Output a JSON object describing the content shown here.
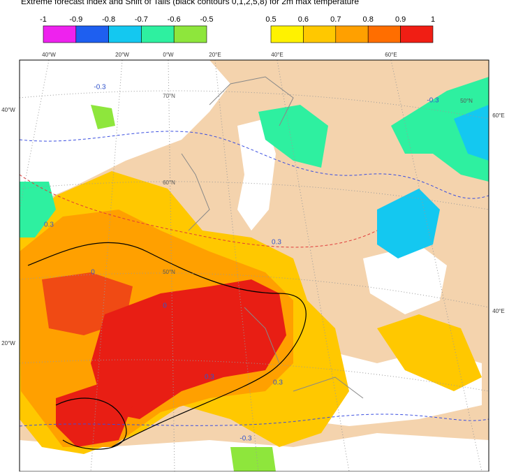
{
  "title": "Extreme forecast index and Shift of Tails (black contours 0,1,2,5,8) for 2m max temperature",
  "legend": {
    "negative": {
      "ticks": [
        -1,
        -0.9,
        -0.8,
        -0.7,
        -0.6,
        -0.5
      ],
      "colors": [
        "#ee22ee",
        "#1e5ff0",
        "#14c8f0",
        "#2ef0a0",
        "#8ee63c"
      ]
    },
    "positive": {
      "ticks": [
        0.5,
        0.6,
        0.7,
        0.8,
        0.9,
        1
      ],
      "colors": [
        "#fff200",
        "#ffc800",
        "#ffa000",
        "#ff6e00",
        "#f01e14"
      ]
    }
  },
  "map": {
    "top_labels": [
      "40°W",
      "20°W",
      "0°W",
      "20°E",
      "40°E",
      "60°E"
    ],
    "left_labels": [
      "40°W",
      "20°W"
    ],
    "right_labels": [
      "60°E",
      "40°E"
    ],
    "latitude_labels": [
      "70°N",
      "60°N",
      "50°N",
      "50°N"
    ],
    "contour_labels": [
      "-0.3",
      "0.3",
      "-0.3",
      "0.3",
      "0",
      "0.3",
      "-0.3",
      "0",
      "0.3"
    ]
  }
}
